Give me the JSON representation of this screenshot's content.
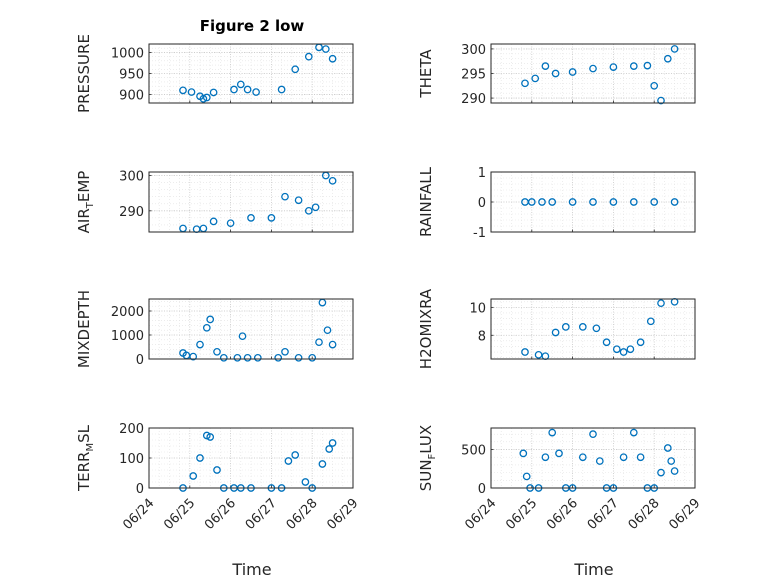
{
  "figure": {
    "title": "Figure 2 low"
  },
  "colors": {
    "marker": "#0072BD",
    "axis": "#262626",
    "grid": "#c8c8c8",
    "minor_grid": "#e2e2e2"
  },
  "x_axis": {
    "label": "Time",
    "range": [
      "06/24",
      "06/29"
    ],
    "tick_labels": [
      "06/24",
      "06/25",
      "06/26",
      "06/27",
      "06/28",
      "06/29"
    ]
  },
  "chart_data": [
    {
      "type": "scatter",
      "ylabel": "PRESSURE",
      "ylim": [
        880,
        1020
      ],
      "yticks": [
        900,
        950,
        1000
      ],
      "x": [
        "06/24 20:00",
        "06/25 01:00",
        "06/25 06:00",
        "06/25 08:00",
        "06/25 10:00",
        "06/25 14:00",
        "06/26 02:00",
        "06/26 06:00",
        "06/26 10:00",
        "06/26 15:00",
        "06/27 06:00",
        "06/27 14:00",
        "06/27 22:00",
        "06/28 04:00",
        "06/28 08:00",
        "06/28 12:00"
      ],
      "y": [
        910,
        906,
        896,
        890,
        893,
        905,
        912,
        924,
        912,
        906,
        912,
        960,
        990,
        1012,
        1008,
        985
      ]
    },
    {
      "type": "scatter",
      "ylabel": "THETA",
      "ylim": [
        289,
        301
      ],
      "yticks": [
        290,
        295,
        300
      ],
      "x": [
        "06/24 20:00",
        "06/25 02:00",
        "06/25 08:00",
        "06/25 14:00",
        "06/26 00:00",
        "06/26 12:00",
        "06/27 00:00",
        "06/27 12:00",
        "06/27 20:00",
        "06/28 00:00",
        "06/28 04:00",
        "06/28 08:00",
        "06/28 12:00"
      ],
      "y": [
        293,
        294,
        296.5,
        295,
        295.3,
        296,
        296.3,
        296.5,
        296.6,
        292.5,
        289.5,
        298,
        300
      ]
    },
    {
      "type": "scatter",
      "ylabel": "AIR_TEMP",
      "ylim": [
        284,
        301
      ],
      "yticks": [
        290,
        300
      ],
      "x": [
        "06/24 20:00",
        "06/25 04:00",
        "06/25 08:00",
        "06/25 14:00",
        "06/26 00:00",
        "06/26 12:00",
        "06/27 00:00",
        "06/27 08:00",
        "06/27 16:00",
        "06/27 22:00",
        "06/28 02:00",
        "06/28 08:00",
        "06/28 12:00"
      ],
      "y": [
        285,
        284.8,
        285,
        287,
        286.5,
        288,
        288,
        294,
        293,
        290,
        291,
        300,
        298.5
      ]
    },
    {
      "type": "scatter",
      "ylabel": "RAINFALL",
      "ylim": [
        -1,
        1
      ],
      "yticks": [
        -1,
        0,
        1
      ],
      "x": [
        "06/24 20:00",
        "06/25 00:00",
        "06/25 06:00",
        "06/25 12:00",
        "06/26 00:00",
        "06/26 12:00",
        "06/27 00:00",
        "06/27 12:00",
        "06/28 00:00",
        "06/28 12:00"
      ],
      "y": [
        0,
        0,
        0,
        0,
        0,
        0,
        0,
        0,
        0,
        0
      ]
    },
    {
      "type": "scatter",
      "ylabel": "MIXDEPTH",
      "ylim": [
        0,
        2500
      ],
      "yticks": [
        0,
        1000,
        2000
      ],
      "x": [
        "06/24 20:00",
        "06/24 22:00",
        "06/25 02:00",
        "06/25 06:00",
        "06/25 10:00",
        "06/25 12:00",
        "06/25 16:00",
        "06/25 20:00",
        "06/26 04:00",
        "06/26 07:00",
        "06/26 10:00",
        "06/26 16:00",
        "06/27 04:00",
        "06/27 08:00",
        "06/27 16:00",
        "06/28 00:00",
        "06/28 04:00",
        "06/28 06:00",
        "06/28 09:00",
        "06/28 12:00"
      ],
      "y": [
        250,
        150,
        100,
        600,
        1300,
        1650,
        300,
        50,
        50,
        950,
        50,
        50,
        50,
        300,
        50,
        50,
        700,
        2350,
        1200,
        600
      ]
    },
    {
      "type": "scatter",
      "ylabel": "H2OMIXRA",
      "ylim": [
        6.3,
        10.6
      ],
      "yticks": [
        8,
        10
      ],
      "x": [
        "06/24 20:00",
        "06/25 04:00",
        "06/25 08:00",
        "06/25 14:00",
        "06/25 20:00",
        "06/26 06:00",
        "06/26 14:00",
        "06/26 20:00",
        "06/27 02:00",
        "06/27 06:00",
        "06/27 10:00",
        "06/27 16:00",
        "06/27 22:00",
        "06/28 04:00",
        "06/28 12:00"
      ],
      "y": [
        6.8,
        6.6,
        6.5,
        8.2,
        8.6,
        8.6,
        8.5,
        7.5,
        7,
        6.8,
        7,
        7.5,
        9,
        10.3,
        10.4
      ]
    },
    {
      "type": "scatter",
      "ylabel": "TERR_MSL",
      "ylim": [
        0,
        200
      ],
      "yticks": [
        0,
        100,
        200
      ],
      "x": [
        "06/24 20:00",
        "06/25 02:00",
        "06/25 06:00",
        "06/25 10:00",
        "06/25 12:00",
        "06/25 16:00",
        "06/25 20:00",
        "06/26 02:00",
        "06/26 06:00",
        "06/26 12:00",
        "06/27 00:00",
        "06/27 06:00",
        "06/27 10:00",
        "06/27 14:00",
        "06/27 20:00",
        "06/28 00:00",
        "06/28 06:00",
        "06/28 10:00",
        "06/28 12:00"
      ],
      "y": [
        0,
        40,
        100,
        175,
        170,
        60,
        0,
        0,
        0,
        0,
        0,
        0,
        90,
        110,
        20,
        0,
        80,
        130,
        150
      ]
    },
    {
      "type": "scatter",
      "ylabel": "SUN_FLUX",
      "ylim": [
        0,
        780
      ],
      "yticks": [
        0,
        500
      ],
      "x": [
        "06/24 19:00",
        "06/24 21:00",
        "06/24 23:00",
        "06/25 04:00",
        "06/25 08:00",
        "06/25 12:00",
        "06/25 16:00",
        "06/25 20:00",
        "06/26 00:00",
        "06/26 06:00",
        "06/26 12:00",
        "06/26 16:00",
        "06/26 20:00",
        "06/27 00:00",
        "06/27 06:00",
        "06/27 12:00",
        "06/27 16:00",
        "06/27 20:00",
        "06/28 00:00",
        "06/28 04:00",
        "06/28 08:00",
        "06/28 10:00",
        "06/28 12:00"
      ],
      "y": [
        450,
        150,
        0,
        0,
        400,
        720,
        450,
        0,
        0,
        400,
        700,
        350,
        0,
        0,
        400,
        720,
        400,
        0,
        0,
        200,
        520,
        350,
        220
      ]
    }
  ]
}
